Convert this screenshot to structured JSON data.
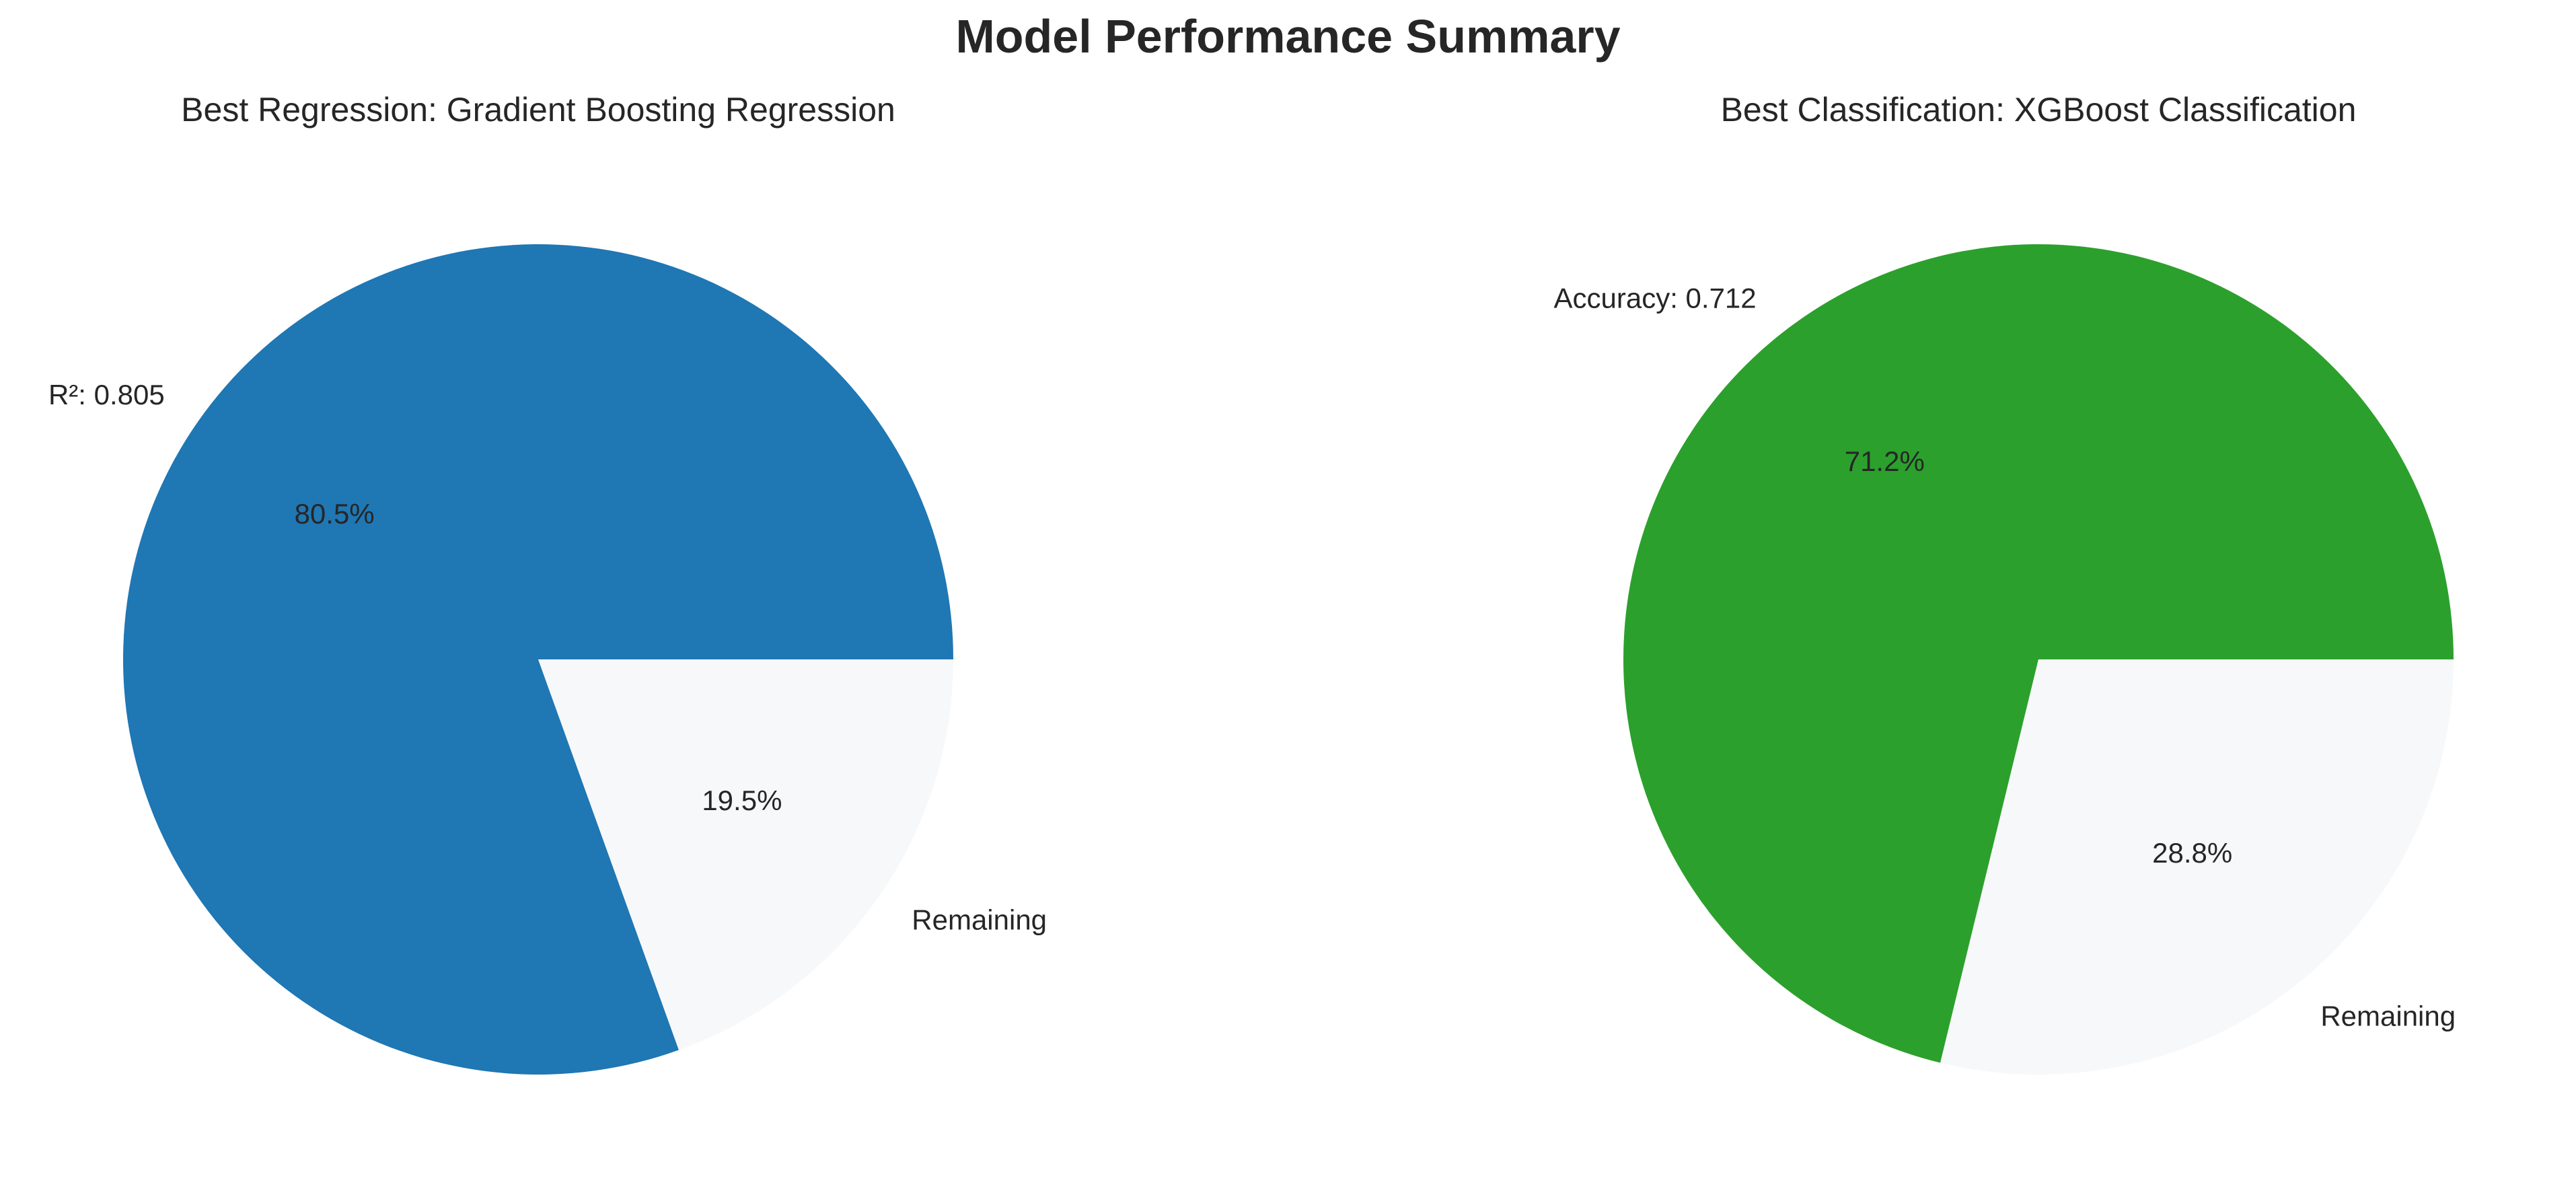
{
  "figure": {
    "title": "Model Performance Summary"
  },
  "chart_data": [
    {
      "type": "pie",
      "title": "Best Regression: Gradient Boosting Regression",
      "labels": [
        "R²: 0.805",
        "Remaining"
      ],
      "values": [
        0.805,
        0.195
      ],
      "autopct": [
        "80.5%",
        "19.5%"
      ],
      "colors": [
        "#1f77b4",
        "#f7f8fa"
      ],
      "start_angle_deg": 0
    },
    {
      "type": "pie",
      "title": "Best Classification: XGBoost Classification",
      "labels": [
        "Accuracy: 0.712",
        "Remaining"
      ],
      "values": [
        0.712,
        0.288
      ],
      "autopct": [
        "71.2%",
        "28.8%"
      ],
      "colors": [
        "#2ca02c",
        "#f7f8fa"
      ],
      "start_angle_deg": 0
    }
  ]
}
